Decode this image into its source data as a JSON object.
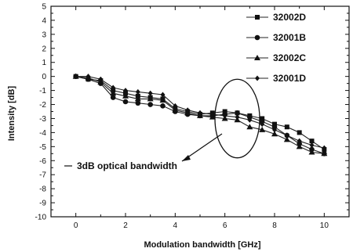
{
  "chart_data": {
    "type": "line",
    "xlabel": "Modulation bandwidth [GHz]",
    "ylabel": "Intensity [dB]",
    "xlim": [
      -1,
      11
    ],
    "ylim": [
      -10,
      5
    ],
    "xticks": [
      0,
      2,
      4,
      6,
      8,
      10
    ],
    "yticks": [
      5,
      4,
      3,
      2,
      1,
      0,
      -1,
      -2,
      -3,
      -4,
      -5,
      -6,
      -7,
      -8,
      -9,
      -10
    ],
    "legend_position": "top-right",
    "series": [
      {
        "name": "32002D",
        "marker": "square",
        "x": [
          0,
          0.5,
          1,
          1.5,
          2,
          2.5,
          3,
          3.5,
          4,
          4.5,
          5,
          5.5,
          6,
          6.5,
          7,
          7.5,
          8,
          8.5,
          9,
          9.5,
          10
        ],
        "values": [
          0,
          -0.2,
          -0.3,
          -1.0,
          -1.2,
          -1.4,
          -1.5,
          -1.6,
          -2.3,
          -2.5,
          -2.7,
          -2.6,
          -2.5,
          -2.6,
          -2.8,
          -3.0,
          -3.4,
          -3.6,
          -4.0,
          -4.6,
          -5.2
        ]
      },
      {
        "name": "32001B",
        "marker": "circle",
        "x": [
          0,
          0.5,
          1,
          1.5,
          2,
          2.5,
          3,
          3.5,
          4,
          4.5,
          5,
          5.5,
          6,
          6.5,
          7,
          7.5,
          8,
          8.5,
          9,
          9.5,
          10
        ],
        "values": [
          0,
          -0.2,
          -0.5,
          -1.5,
          -1.8,
          -1.9,
          -2.0,
          -2.1,
          -2.5,
          -2.7,
          -2.8,
          -2.8,
          -2.7,
          -2.6,
          -2.9,
          -3.2,
          -3.6,
          -4.2,
          -4.8,
          -5.2,
          -5.5
        ]
      },
      {
        "name": "32002C",
        "marker": "triangle",
        "x": [
          0,
          0.5,
          1,
          1.5,
          2,
          2.5,
          3,
          3.5,
          4,
          4.5,
          5,
          5.5,
          6,
          6.5,
          7,
          7.5,
          8,
          8.5,
          9,
          9.5,
          10
        ],
        "values": [
          0,
          -0.1,
          -0.4,
          -1.2,
          -1.4,
          -1.6,
          -1.6,
          -1.7,
          -2.4,
          -2.6,
          -2.8,
          -2.9,
          -3.0,
          -3.1,
          -3.6,
          -3.8,
          -4.1,
          -4.5,
          -5.0,
          -5.4,
          -5.5
        ]
      },
      {
        "name": "32001D",
        "marker": "diamond",
        "x": [
          0,
          0.5,
          1,
          1.5,
          2,
          2.5,
          3,
          3.5,
          4,
          4.5,
          5,
          5.5,
          6,
          6.5,
          7,
          7.5,
          8,
          8.5,
          9,
          9.5,
          10
        ],
        "values": [
          0,
          0,
          -0.2,
          -0.8,
          -1.0,
          -1.1,
          -1.2,
          -1.3,
          -2.1,
          -2.4,
          -2.6,
          -2.7,
          -2.8,
          -2.9,
          -3.1,
          -3.4,
          -3.8,
          -4.2,
          -4.6,
          -4.9,
          -5.1
        ]
      }
    ],
    "annotation": {
      "text": "3dB optical bandwidth",
      "ellipse_center": [
        6.5,
        -3
      ],
      "ellipse_half_width": 0.9,
      "ellipse_half_height": 2.8
    }
  }
}
